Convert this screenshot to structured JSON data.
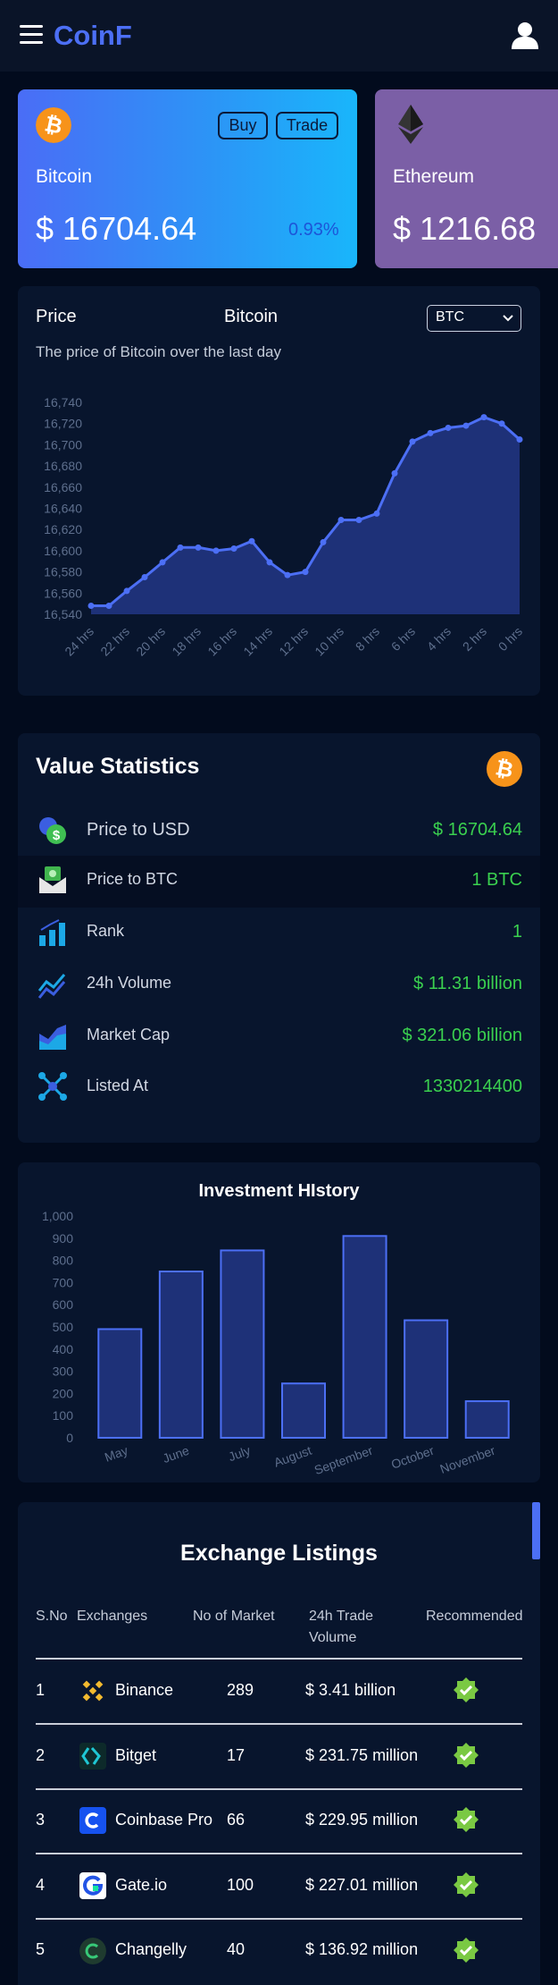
{
  "header": {
    "brand": "CoinF"
  },
  "cards": [
    {
      "name": "Bitcoin",
      "price": "$ 16704.64",
      "change": "0.93%",
      "buy_label": "Buy",
      "trade_label": "Trade",
      "color": "#f7931a"
    },
    {
      "name": "Ethereum",
      "price": "$ 1216.68",
      "color": "#7b5fa6"
    }
  ],
  "price_panel": {
    "title": "Price",
    "coin": "Bitcoin",
    "select_value": "BTC",
    "subtitle": "The price of Bitcoin over the last day"
  },
  "chart_data": {
    "type": "area",
    "x": [
      "24 hrs",
      "23 hrs",
      "22 hrs",
      "21 hrs",
      "20 hrs",
      "19 hrs",
      "18 hrs",
      "17 hrs",
      "16 hrs",
      "15 hrs",
      "14 hrs",
      "13 hrs",
      "12 hrs",
      "11 hrs",
      "10 hrs",
      "9 hrs",
      "8 hrs",
      "7 hrs",
      "6 hrs",
      "5 hrs",
      "4 hrs",
      "3 hrs",
      "2 hrs",
      "1 hrs",
      "0 hrs"
    ],
    "x_tick_labels": [
      "24 hrs",
      "22 hrs",
      "20 hrs",
      "18 hrs",
      "16 hrs",
      "14 hrs",
      "12 hrs",
      "10 hrs",
      "8 hrs",
      "6 hrs",
      "4 hrs",
      "2 hrs",
      "0 hrs"
    ],
    "values": [
      16548,
      16548,
      16562,
      16575,
      16589,
      16603,
      16603,
      16600,
      16602,
      16609,
      16589,
      16577,
      16580,
      16608,
      16629,
      16629,
      16635,
      16673,
      16703,
      16711,
      16716,
      16718,
      16726,
      16720,
      16705
    ],
    "ylim": [
      16540,
      16740
    ],
    "yticks": [
      "16,740",
      "16,720",
      "16,700",
      "16,680",
      "16,660",
      "16,640",
      "16,620",
      "16,600",
      "16,580",
      "16,560",
      "16,540"
    ],
    "colors": {
      "line": "#4c6ff5",
      "fill": "#1e3178"
    }
  },
  "stats": {
    "title": "Value Statistics",
    "rows": [
      {
        "label": "Price to USD",
        "value": "$ 16704.64",
        "icon": "dollar-coin-icon"
      },
      {
        "label": "Price to BTC",
        "value": "1 BTC",
        "icon": "cash-envelope-icon"
      },
      {
        "label": "Rank",
        "value": "1",
        "icon": "bar-chart-icon"
      },
      {
        "label": "24h Volume",
        "value": "$ 11.31 billion",
        "icon": "trend-line-icon"
      },
      {
        "label": "Market Cap",
        "value": "$ 321.06 billion",
        "icon": "area-chart-icon"
      },
      {
        "label": "Listed At",
        "value": "1330214400",
        "icon": "network-icon"
      }
    ]
  },
  "investment": {
    "title": "Investment HIstory",
    "chart_data": {
      "type": "bar",
      "categories": [
        "May",
        "June",
        "July",
        "August",
        "September",
        "October",
        "November"
      ],
      "values": [
        490,
        750,
        845,
        245,
        910,
        530,
        165
      ],
      "ylim": [
        0,
        1000
      ],
      "yticks": [
        "1,000",
        "900",
        "800",
        "700",
        "600",
        "500",
        "400",
        "300",
        "200",
        "100",
        "0"
      ],
      "colors": {
        "bar": "#1e3178",
        "border": "#4c6ff5"
      }
    }
  },
  "exchanges": {
    "title": "Exchange Listings",
    "headers": [
      "S.No",
      "Exchanges",
      "No of Market",
      "24h Trade Volume",
      "Recommended"
    ],
    "header_volume_lines": [
      "24h Trade",
      "Volume"
    ],
    "rows": [
      {
        "sno": "1",
        "name": "Binance",
        "markets": "289",
        "volume": "$ 3.41 billion",
        "logo": "binance-logo-icon"
      },
      {
        "sno": "2",
        "name": "Bitget",
        "markets": "17",
        "volume": "$ 231.75 million",
        "logo": "bitget-logo-icon"
      },
      {
        "sno": "3",
        "name": "Coinbase Pro",
        "markets": "66",
        "volume": "$ 229.95 million",
        "logo": "coinbase-logo-icon"
      },
      {
        "sno": "4",
        "name": "Gate.io",
        "markets": "100",
        "volume": "$ 227.01 million",
        "logo": "gateio-logo-icon"
      },
      {
        "sno": "5",
        "name": "Changelly",
        "markets": "40",
        "volume": "$ 136.92 million",
        "logo": "changelly-logo-icon"
      }
    ]
  }
}
